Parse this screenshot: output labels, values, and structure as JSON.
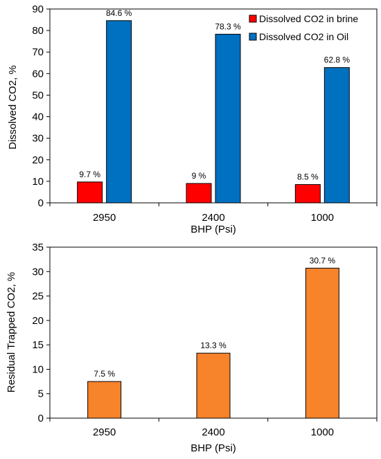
{
  "chart_data": [
    {
      "type": "bar",
      "categories": [
        "2950",
        "2400",
        "1000"
      ],
      "series": [
        {
          "name": "Dissolved CO2 in brine",
          "values": [
            9.7,
            9,
            8.5
          ],
          "labels": [
            "9.7 %",
            "9 %",
            "8.5 %"
          ],
          "color": "#ff0000"
        },
        {
          "name": "Dissolved CO2 in Oil",
          "values": [
            84.6,
            78.3,
            62.8
          ],
          "labels": [
            "84.6 %",
            "78.3 %",
            "62.8 %"
          ],
          "color": "#0070c0"
        }
      ],
      "xlabel": "BHP (Psi)",
      "ylabel": "Dissolved  CO2, %",
      "ylim": [
        0,
        90
      ],
      "yticks": [
        "0",
        "10",
        "20",
        "30",
        "40",
        "50",
        "60",
        "70",
        "80",
        "90"
      ],
      "legend": "top-right",
      "grid": false
    },
    {
      "type": "bar",
      "categories": [
        "2950",
        "2400",
        "1000"
      ],
      "series": [
        {
          "values": [
            7.5,
            13.3,
            30.7
          ],
          "labels": [
            "7.5 %",
            "13.3 %",
            "30.7 %"
          ],
          "color": "#f7832b"
        }
      ],
      "xlabel": "BHP (Psi)",
      "ylabel": "Residual Trapped CO2, %",
      "ylim": [
        0,
        35
      ],
      "yticks": [
        "0",
        "5",
        "10",
        "15",
        "20",
        "25",
        "30",
        "35"
      ],
      "grid": false
    }
  ]
}
